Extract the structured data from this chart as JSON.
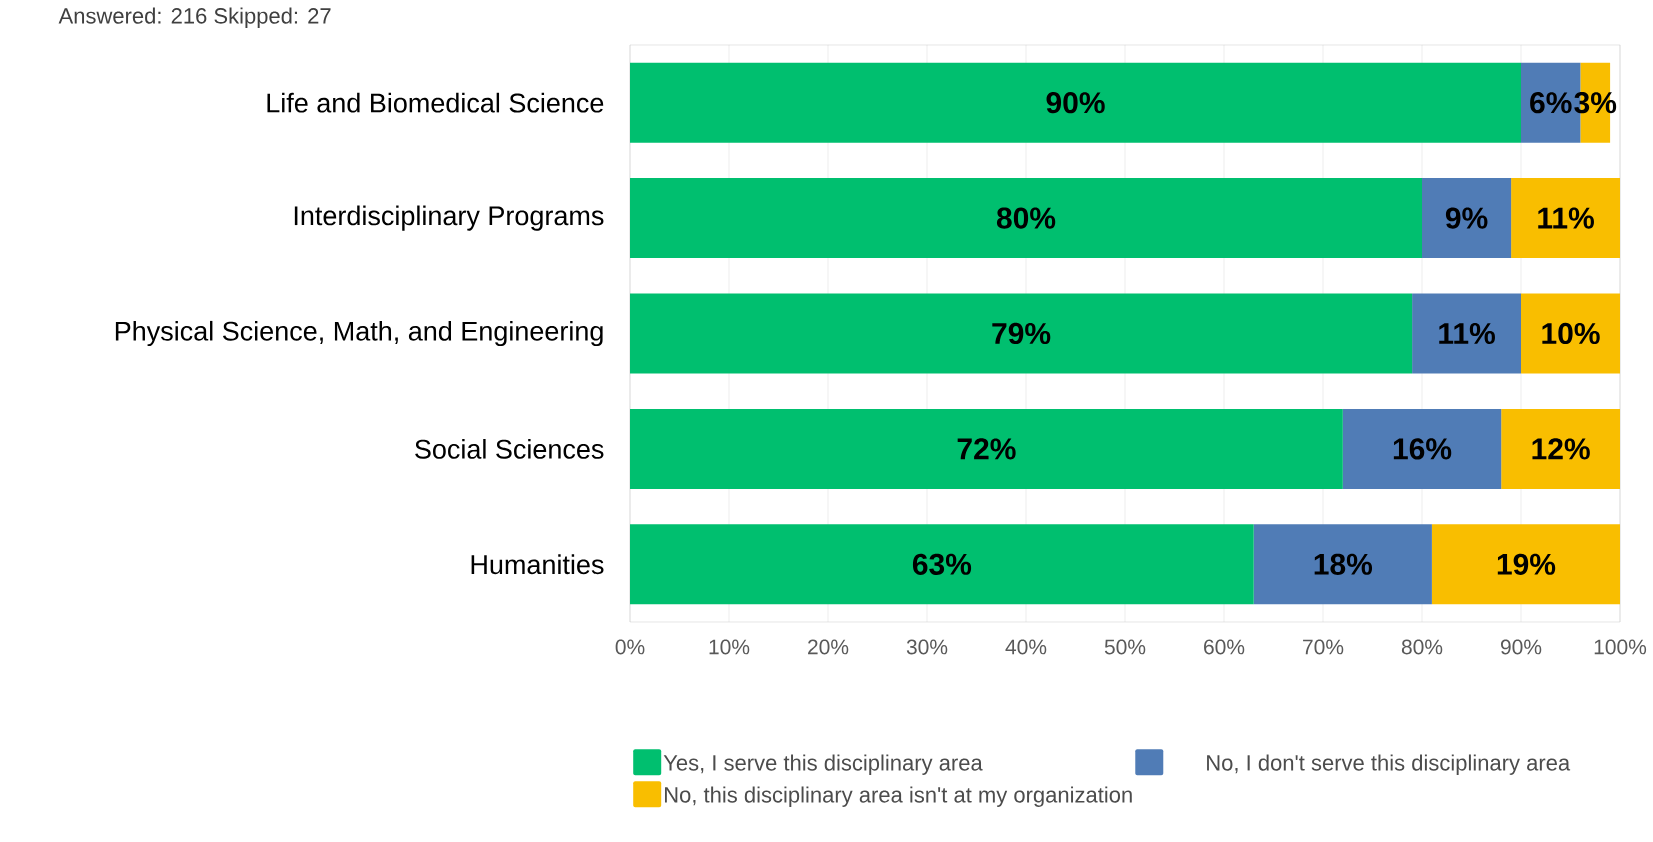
{
  "chart_data": {
    "type": "bar",
    "orientation": "horizontal",
    "stacked": true,
    "categories": [
      "Life and Biomedical Science",
      "Interdisciplinary Programs",
      "Physical Science, Math, and Engineering",
      "Social Sciences",
      "Humanities"
    ],
    "series": [
      {
        "name": "Yes, I serve this disciplinary area",
        "color": "#00bf6f",
        "values": [
          90,
          80,
          79,
          72,
          63
        ],
        "value_labels": [
          "90%",
          "80%",
          "79%",
          "72%",
          "63%"
        ]
      },
      {
        "name": "No, I don't serve this disciplinary area",
        "color": "#507cb6",
        "values": [
          6,
          9,
          11,
          16,
          18
        ],
        "value_labels": [
          "6%",
          "9%",
          "11%",
          "16%",
          "18%"
        ]
      },
      {
        "name": "No, this disciplinary area isn't at my organization",
        "color": "#f9be00",
        "values": [
          3,
          11,
          10,
          12,
          19
        ],
        "value_labels": [
          "3%",
          "11%",
          "10%",
          "12%",
          "19%"
        ]
      }
    ],
    "xlim": [
      0,
      100
    ],
    "xticks": [
      {
        "value": 0,
        "label": "0%"
      },
      {
        "value": 10,
        "label": "10%"
      },
      {
        "value": 20,
        "label": "20%"
      },
      {
        "value": 30,
        "label": "30%"
      },
      {
        "value": 40,
        "label": "40%"
      },
      {
        "value": 50,
        "label": "50%"
      },
      {
        "value": 60,
        "label": "60%"
      },
      {
        "value": 70,
        "label": "70%"
      },
      {
        "value": 80,
        "label": "80%"
      },
      {
        "value": 90,
        "label": "90%"
      },
      {
        "value": 100,
        "label": "100%"
      }
    ],
    "grid": "x",
    "legend": "bottom",
    "annotations": [
      "Answered: 216    Skipped: 27"
    ]
  }
}
